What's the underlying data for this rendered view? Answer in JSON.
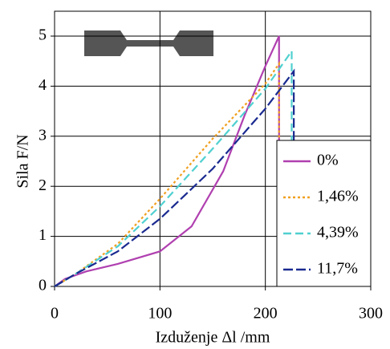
{
  "chart_data": {
    "type": "line",
    "y_label": "Sila F/N",
    "x_label": "Izduženje Δl /mm",
    "xlim": [
      0,
      300
    ],
    "xticks": [
      0,
      100,
      200,
      300
    ],
    "ylim": [
      0,
      5
    ],
    "yticks": [
      0,
      1,
      2,
      3,
      4,
      5
    ],
    "grid": true,
    "legend": "right",
    "series": [
      {
        "name": "0%",
        "color": "#b040b0",
        "dash": "solid",
        "x": [
          0,
          10,
          30,
          60,
          100,
          130,
          160,
          180,
          200,
          213,
          213
        ],
        "values": [
          0,
          0.15,
          0.3,
          0.45,
          0.7,
          1.2,
          2.3,
          3.4,
          4.4,
          5.0,
          0
        ]
      },
      {
        "name": "1,46%",
        "color": "#f0a020",
        "dash": "dotted",
        "x": [
          0,
          20,
          60,
          100,
          150,
          200,
          213,
          213
        ],
        "values": [
          0,
          0.25,
          0.85,
          1.75,
          2.95,
          4.05,
          4.45,
          0
        ]
      },
      {
        "name": "4,39%",
        "color": "#50d0d0",
        "dash": "dashed",
        "x": [
          0,
          20,
          60,
          100,
          150,
          200,
          225,
          225
        ],
        "values": [
          0,
          0.25,
          0.8,
          1.6,
          2.75,
          3.95,
          4.7,
          0
        ]
      },
      {
        "name": "11,7%",
        "color": "#1a2a90",
        "dash": "longdash",
        "x": [
          0,
          20,
          60,
          100,
          150,
          200,
          227,
          227
        ],
        "values": [
          0,
          0.25,
          0.7,
          1.35,
          2.35,
          3.55,
          4.3,
          0
        ]
      }
    ]
  }
}
